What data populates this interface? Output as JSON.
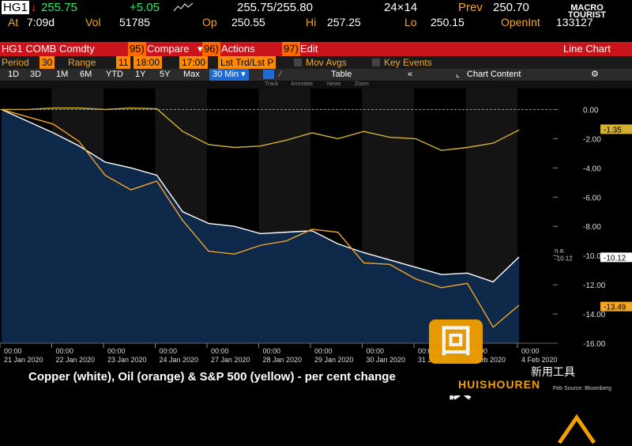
{
  "quote": {
    "ticker": "HG1",
    "arrow": "↓",
    "last": "255.75",
    "change": "+5.05",
    "bid_ask": "255.75/255.80",
    "size": "24×14",
    "prev_label": "Prev",
    "prev": "250.70",
    "at_label": "At",
    "time": "7:09d",
    "vol_label": "Vol",
    "vol": "51785",
    "op_label": "Op",
    "open": "250.55",
    "hi_label": "Hi",
    "high": "257.25",
    "lo_label": "Lo",
    "low": "250.15",
    "oi_label": "OpenInt",
    "open_int": "133127"
  },
  "logo": {
    "line1": "MACRO",
    "line2": "TOURIST"
  },
  "menubar": {
    "security": "HG1 COMB Comdty",
    "compare_num": "95)",
    "compare": "Compare",
    "actions_num": "96)",
    "actions": "Actions",
    "edit_num": "97)",
    "edit": "Edit",
    "chart_type": "Line Chart"
  },
  "options": {
    "period_label": "Period",
    "period_value": "30",
    "range_label": "Range",
    "range_value": "11",
    "time_from": "18:00",
    "time_to": "17:00",
    "lst_trd": "Lst Trd/Lst P",
    "mov_avgs": "Mov Avgs",
    "key_events": "Key Events"
  },
  "tabs": {
    "items": [
      "1D",
      "3D",
      "1M",
      "6M",
      "YTD",
      "1Y",
      "5Y",
      "Max"
    ],
    "interval": "30 Min",
    "table": "Table",
    "chart_content": "Chart Content"
  },
  "subtools": {
    "track": "Track",
    "annotate": "Annotate",
    "news": "News",
    "zoom": "Zoom"
  },
  "caption": "Copper (white), Oil (orange) & S&P 500 (yellow) - per cent change",
  "watermark": {
    "cn": "新用工具",
    "en": "HUISHOUREN",
    "glyph": "回收",
    "credit": "Feb Source: Bloomberg"
  },
  "colors": {
    "copper": "#ffffff",
    "oil": "#f5a623",
    "sp500": "#d4b030",
    "area_fill": "#0e2a4c",
    "bloomberg_red": "#c8141a",
    "amber": "#f5a623"
  },
  "chart_data": {
    "type": "line",
    "title": "",
    "xlabel": "",
    "ylabel": "",
    "ylim": [
      -16,
      1
    ],
    "yticks": [
      "0.00",
      "-2.00",
      "-4.00",
      "-6.00",
      "-8.00",
      "-10.00",
      "-12.00",
      "-14.00",
      "-16.00"
    ],
    "x_time_labels": [
      "00:00",
      "00:00",
      "00:00",
      "00:00",
      "00:00",
      "00:00",
      "00:00",
      "00:00",
      "00:00",
      "00:00",
      "00:00"
    ],
    "x_date_labels": [
      "21 Jan 2020",
      "22 Jan 2020",
      "23 Jan 2020",
      "24 Jan 2020",
      "27 Jan 2020",
      "28 Jan 2020",
      "29 Jan 2020",
      "30 Jan 2020",
      "31 Jan 2020",
      "3 Feb 2020",
      "4 Feb 2020"
    ],
    "x": [
      0,
      0.5,
      1,
      1.5,
      2,
      2.5,
      3,
      3.5,
      4,
      4.5,
      5,
      5.5,
      6,
      6.5,
      7,
      7.5,
      8,
      8.5,
      9,
      9.5,
      10
    ],
    "series": [
      {
        "key": "copper",
        "values": [
          0,
          -0.8,
          -1.6,
          -2.5,
          -3.6,
          -4.0,
          -4.5,
          -7.0,
          -7.8,
          -8.0,
          -8.5,
          -8.4,
          -8.3,
          -9.2,
          -9.8,
          -10.3,
          -10.8,
          -11.3,
          -11.2,
          -11.8,
          -10.1
        ]
      },
      {
        "key": "oil",
        "values": [
          0,
          -0.5,
          -1.0,
          -2.2,
          -4.5,
          -5.5,
          -4.9,
          -7.6,
          -9.7,
          -9.9,
          -9.3,
          -9.0,
          -8.2,
          -8.4,
          -10.5,
          -10.6,
          -11.6,
          -12.2,
          -11.9,
          -14.9,
          -13.4
        ]
      },
      {
        "key": "sp500",
        "values": [
          0,
          0,
          0.1,
          0.1,
          0.0,
          0.1,
          0.05,
          -1.5,
          -2.4,
          -2.6,
          -2.5,
          -2.1,
          -1.6,
          -2.0,
          -1.5,
          -1.9,
          -2.0,
          -2.8,
          -2.6,
          -2.3,
          -1.4
        ]
      }
    ],
    "end_labels": [
      {
        "key": "sp500",
        "text": "-1.35",
        "value": -1.35
      },
      {
        "key": "copper",
        "text": "-10.12",
        "value": -10.12
      },
      {
        "key": "oil",
        "text": "-13.49",
        "value": -13.49
      }
    ],
    "na_label": "n.a.",
    "na_value": "-10.12"
  }
}
